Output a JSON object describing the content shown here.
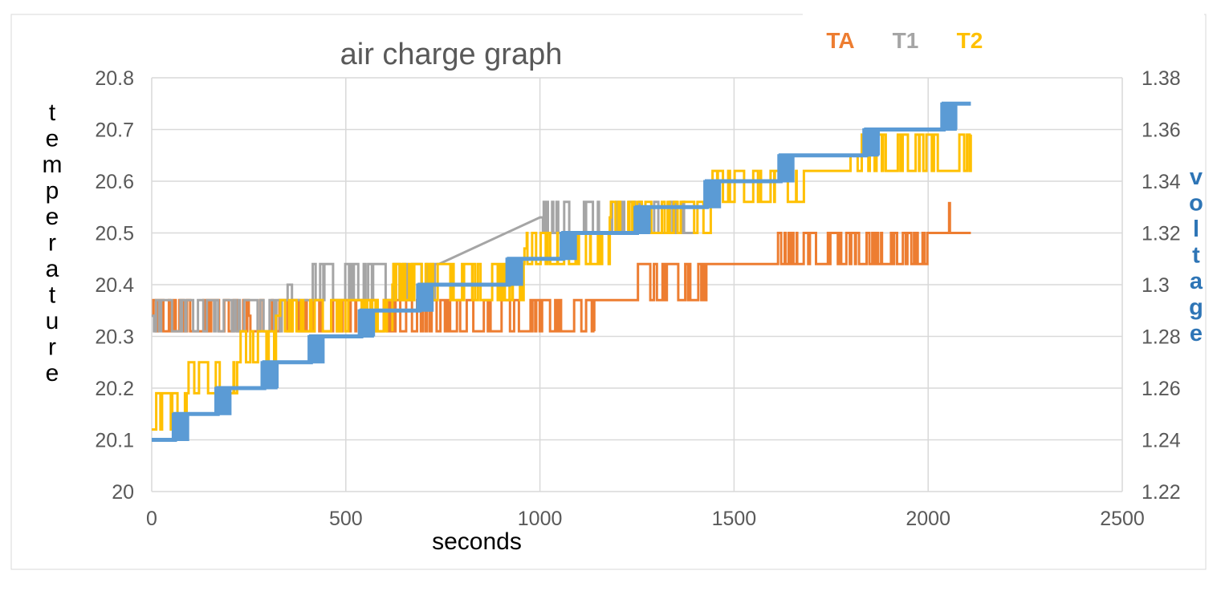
{
  "chart_data": {
    "type": "line",
    "title": "air charge graph",
    "xlabel": "seconds",
    "ylabel": "temperature",
    "y2label": "voltage",
    "xlim": [
      0,
      2500
    ],
    "ylim": [
      20,
      20.8
    ],
    "y2lim": [
      1.22,
      1.38
    ],
    "xticks": [
      0,
      500,
      1000,
      1500,
      2000,
      2500
    ],
    "yticks": [
      20,
      20.1,
      20.2,
      20.3,
      20.4,
      20.5,
      20.6,
      20.7,
      20.8
    ],
    "y2ticks": [
      1.22,
      1.24,
      1.26,
      1.28,
      1.3,
      1.32,
      1.34,
      1.36,
      1.38
    ],
    "xtick_labels": [
      "0",
      "500",
      "1000",
      "1500",
      "2000",
      "2500"
    ],
    "ytick_labels": [
      "20",
      "20.1",
      "20.2",
      "20.3",
      "20.4",
      "20.5",
      "20.6",
      "20.7",
      "20.8"
    ],
    "y2tick_labels": [
      "1.22",
      "1.24",
      "1.26",
      "1.28",
      "1.3",
      "1.32",
      "1.34",
      "1.36",
      "1.38"
    ],
    "grid": true,
    "legend_position": "top-right",
    "series": [
      {
        "name": "TA",
        "axis": "left",
        "color": "#ed7d31",
        "segments": [
          {
            "x0": 0,
            "x1": 250,
            "levels": [
              20.31,
              20.37
            ],
            "base": 20.34
          },
          {
            "x0": 250,
            "x1": 1140,
            "levels": [
              20.31,
              20.37
            ],
            "base": 20.34
          },
          {
            "x0": 1140,
            "x1": 1250,
            "levels": [
              20.37
            ],
            "base": 20.37
          },
          {
            "x0": 1250,
            "x1": 1430,
            "levels": [
              20.37,
              20.44
            ],
            "base": 20.37
          },
          {
            "x0": 1430,
            "x1": 1610,
            "levels": [
              20.44
            ],
            "base": 20.44
          },
          {
            "x0": 1610,
            "x1": 2010,
            "levels": [
              20.44,
              20.5
            ],
            "base": 20.44
          },
          {
            "x0": 2010,
            "x1": 2110,
            "levels": [
              20.5
            ],
            "base": 20.5
          }
        ],
        "spikes": [
          2055
        ]
      },
      {
        "name": "T1",
        "axis": "left",
        "color": "#a5a5a5",
        "segments": [
          {
            "x0": 0,
            "x1": 350,
            "levels": [
              20.31,
              20.37
            ],
            "base": 20.34
          },
          {
            "x0": 350,
            "x1": 740,
            "levels": [
              20.37,
              20.44
            ],
            "base": 20.4
          },
          {
            "x0": 1000,
            "x1": 1400,
            "levels": [
              20.5,
              20.56
            ],
            "base": 20.53
          }
        ]
      },
      {
        "name": "T2",
        "axis": "left",
        "color": "#ffc000",
        "segments": [
          {
            "x0": 0,
            "x1": 90,
            "levels": [
              20.12,
              20.19
            ],
            "base": 20.12
          },
          {
            "x0": 90,
            "x1": 220,
            "levels": [
              20.19,
              20.25
            ],
            "base": 20.19
          },
          {
            "x0": 220,
            "x1": 320,
            "levels": [
              20.25,
              20.31
            ],
            "base": 20.25
          },
          {
            "x0": 320,
            "x1": 620,
            "levels": [
              20.31,
              20.37
            ],
            "base": 20.34
          },
          {
            "x0": 620,
            "x1": 960,
            "levels": [
              20.37,
              20.44
            ],
            "base": 20.4
          },
          {
            "x0": 960,
            "x1": 1180,
            "levels": [
              20.44,
              20.5
            ],
            "base": 20.47
          },
          {
            "x0": 1180,
            "x1": 1440,
            "levels": [
              20.5,
              20.56
            ],
            "base": 20.53
          },
          {
            "x0": 1440,
            "x1": 1680,
            "levels": [
              20.56,
              20.62
            ],
            "base": 20.6
          },
          {
            "x0": 1680,
            "x1": 1800,
            "levels": [
              20.62
            ],
            "base": 20.62
          },
          {
            "x0": 1800,
            "x1": 2110,
            "levels": [
              20.62,
              20.69
            ],
            "base": 20.65
          }
        ]
      },
      {
        "name": "voltage",
        "axis": "right",
        "color": "#5b9bd5",
        "steps": [
          [
            0,
            1.24
          ],
          [
            60,
            1.24
          ],
          [
            60,
            1.25
          ],
          [
            170,
            1.25
          ],
          [
            170,
            1.26
          ],
          [
            290,
            1.26
          ],
          [
            290,
            1.27
          ],
          [
            410,
            1.27
          ],
          [
            410,
            1.28
          ],
          [
            540,
            1.28
          ],
          [
            540,
            1.29
          ],
          [
            690,
            1.29
          ],
          [
            690,
            1.3
          ],
          [
            920,
            1.3
          ],
          [
            920,
            1.31
          ],
          [
            1060,
            1.31
          ],
          [
            1060,
            1.32
          ],
          [
            1250,
            1.32
          ],
          [
            1250,
            1.33
          ],
          [
            1430,
            1.33
          ],
          [
            1430,
            1.34
          ],
          [
            1620,
            1.34
          ],
          [
            1620,
            1.35
          ],
          [
            1840,
            1.35
          ],
          [
            1840,
            1.36
          ],
          [
            2040,
            1.36
          ],
          [
            2040,
            1.37
          ],
          [
            2110,
            1.37
          ]
        ],
        "band_at": [
          60,
          170,
          290,
          410,
          540,
          690,
          920,
          1060,
          1250,
          1430,
          1620,
          1840,
          2040
        ],
        "band_width": 40
      }
    ]
  },
  "legend": {
    "ta_label": "TA",
    "t1_label": "T1",
    "t2_label": "T2"
  },
  "colors": {
    "ta": "#ed7d31",
    "t1": "#a5a5a5",
    "t2": "#ffc000",
    "voltage": "#5b9bd5",
    "voltage_label": "#2e75b6",
    "grid": "#d9d9d9",
    "axis_text": "#595959"
  }
}
